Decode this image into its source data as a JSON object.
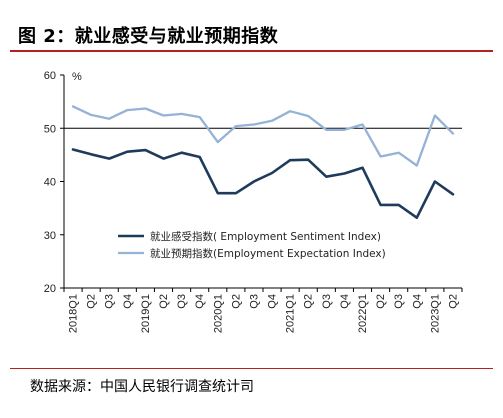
{
  "header": {
    "title": "图 2：就业感受与就业预期指数"
  },
  "footer": {
    "source": "数据来源：中国人民银行调查统计司"
  },
  "chart_data": {
    "type": "line",
    "title": "",
    "xlabel": "",
    "ylabel": "%",
    "ylim": [
      20,
      60
    ],
    "yticks": [
      "20",
      "30",
      "40",
      "50",
      "60"
    ],
    "categories": [
      "2018Q1",
      "Q2",
      "Q3",
      "Q4",
      "2019Q1",
      "Q2",
      "Q3",
      "Q4",
      "2020Q1",
      "Q2",
      "Q3",
      "Q4",
      "2021Q1",
      "Q2",
      "Q3",
      "Q4",
      "2022Q1",
      "Q2",
      "Q3",
      "Q4",
      "2023Q1",
      "Q2"
    ],
    "reference_line": 50,
    "grid": false,
    "legend_position": "center",
    "series": [
      {
        "name": "就业感受指数( Employment Sentiment Index)",
        "color": "#1f3b5c",
        "values": [
          46.0,
          45.1,
          44.3,
          45.6,
          45.9,
          44.3,
          45.4,
          44.6,
          37.8,
          37.8,
          40.0,
          41.6,
          44.0,
          44.1,
          40.9,
          41.5,
          42.6,
          35.6,
          35.6,
          33.2,
          40.0,
          37.6
        ]
      },
      {
        "name": "就业预期指数(Employment Expectation Index)",
        "color": "#94b3d6",
        "values": [
          54.1,
          52.5,
          51.8,
          53.4,
          53.7,
          52.4,
          52.7,
          52.1,
          47.4,
          50.4,
          50.7,
          51.4,
          53.2,
          52.3,
          49.7,
          49.7,
          50.7,
          44.7,
          45.4,
          43.0,
          52.4,
          49.0
        ]
      }
    ]
  }
}
